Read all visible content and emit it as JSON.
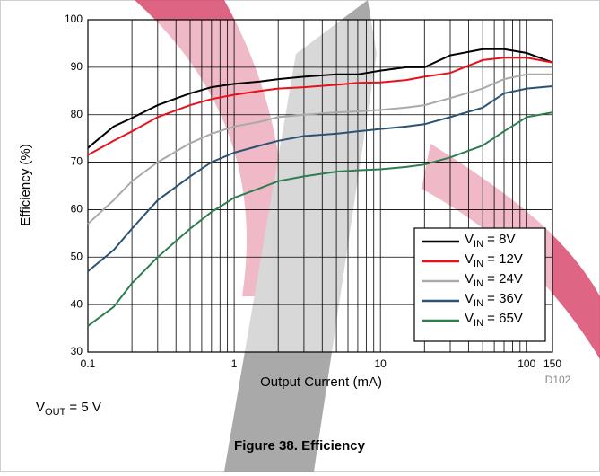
{
  "chart_data": {
    "type": "line",
    "xlabel": "Output Current (mA)",
    "ylabel": "Efficiency (%)",
    "log_x": true,
    "grid": true,
    "legend": "lower right",
    "xlim": [
      0.1,
      150
    ],
    "ylim": [
      30,
      100
    ],
    "xticks": [
      0.1,
      1,
      10,
      100,
      150
    ],
    "x_minor_ticks": [
      0.2,
      0.3,
      0.4,
      0.5,
      0.6,
      0.7,
      0.8,
      0.9,
      2,
      3,
      4,
      5,
      6,
      7,
      8,
      9,
      20,
      30,
      40,
      50,
      60,
      70,
      80,
      90
    ],
    "yticks": [
      30,
      40,
      50,
      60,
      70,
      80,
      90,
      100
    ],
    "x": [
      0.1,
      0.15,
      0.2,
      0.3,
      0.5,
      0.7,
      1,
      1.5,
      2,
      3,
      5,
      7,
      10,
      15,
      20,
      30,
      50,
      70,
      100,
      150
    ],
    "series": [
      {
        "name": "VIN = 8V",
        "color": "#000000",
        "values": [
          73,
          77.5,
          79.3,
          82,
          84.5,
          85.8,
          86.5,
          87,
          87.5,
          88,
          88.5,
          88.5,
          89.3,
          90,
          90,
          92.5,
          93.8,
          93.8,
          93,
          91
        ]
      },
      {
        "name": "VIN = 12V",
        "color": "#e8101a",
        "values": [
          71.5,
          74.5,
          76.5,
          79.5,
          82,
          83.3,
          84.2,
          85,
          85.5,
          85.8,
          86.3,
          86.7,
          86.8,
          87.3,
          88,
          88.8,
          91.5,
          92,
          92,
          91
        ]
      },
      {
        "name": "VIN = 24V",
        "color": "#aaaaaa",
        "values": [
          57,
          62,
          66,
          70,
          74,
          76,
          77.5,
          78.5,
          79.5,
          80,
          80.5,
          80.7,
          81,
          81.5,
          82,
          83.5,
          85.5,
          87.5,
          88.5,
          88.5
        ]
      },
      {
        "name": "VIN = 36V",
        "color": "#2b5273",
        "values": [
          47,
          51.5,
          56,
          62,
          67,
          70,
          72,
          73.5,
          74.5,
          75.5,
          76,
          76.5,
          77,
          77.5,
          78,
          79.5,
          81.5,
          84.5,
          85.5,
          86
        ]
      },
      {
        "name": "VIN = 65V",
        "color": "#2e7d4f",
        "values": [
          35.5,
          39.5,
          44.5,
          50,
          56,
          59.5,
          62.5,
          64.5,
          66,
          67,
          68,
          68.3,
          68.5,
          69,
          69.5,
          71,
          73.5,
          76.5,
          79.5,
          80.5
        ]
      }
    ],
    "code": "D102",
    "note": "VOUT = 5 V",
    "caption": "Figure 38. Efficiency"
  }
}
